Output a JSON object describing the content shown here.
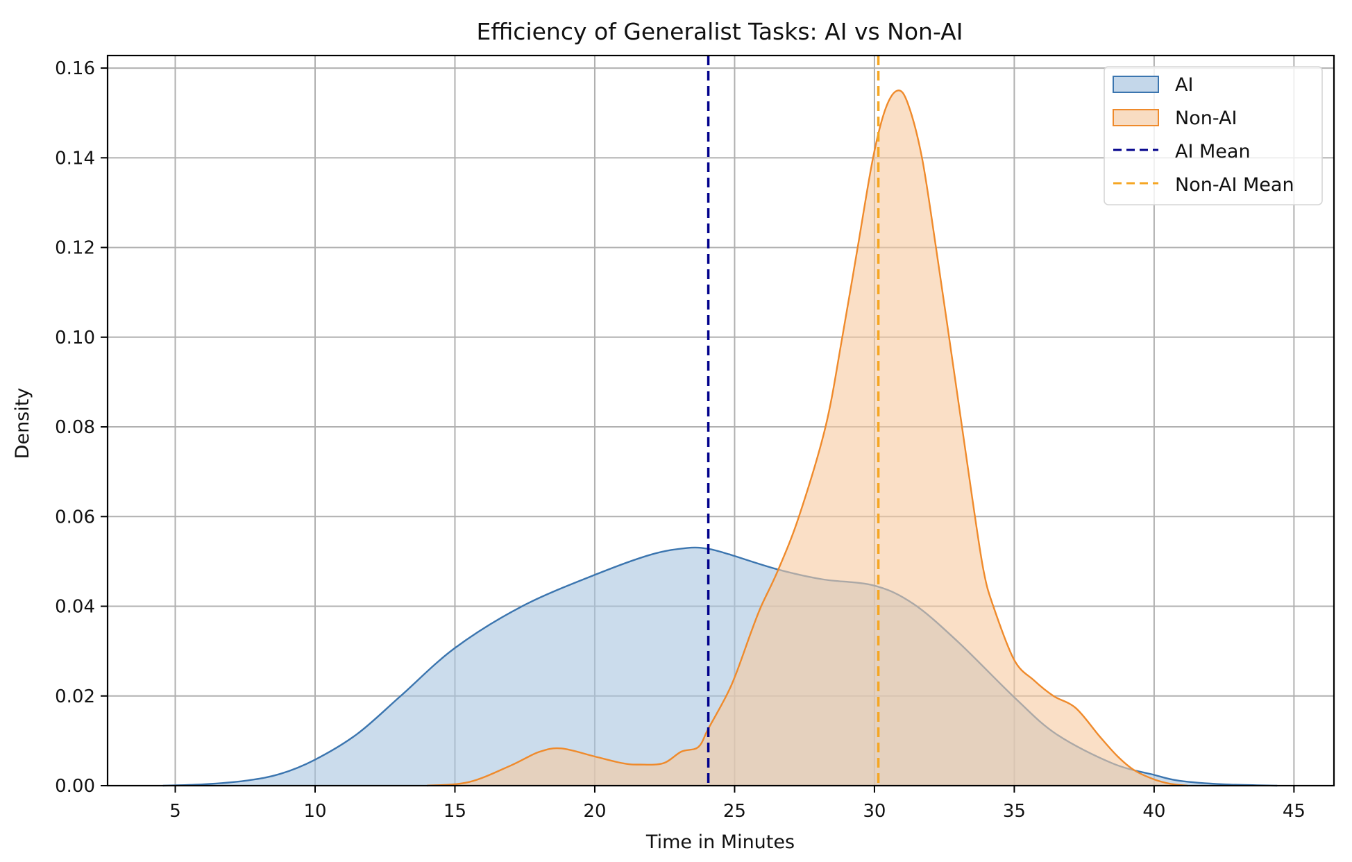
{
  "chart_data": {
    "type": "area",
    "subtype": "kde",
    "title": "Efficiency of Generalist Tasks: AI vs Non-AI",
    "xlabel": "Time in Minutes",
    "ylabel": "Density",
    "xlim": [
      2.58,
      46.43
    ],
    "ylim": [
      0,
      0.1628
    ],
    "xticks": [
      5,
      10,
      15,
      20,
      25,
      30,
      35,
      40,
      45
    ],
    "xtick_labels": [
      "5",
      "10",
      "15",
      "20",
      "25",
      "30",
      "35",
      "40",
      "45"
    ],
    "yticks": [
      0,
      0.02,
      0.04,
      0.06,
      0.08,
      0.1,
      0.12,
      0.14,
      0.16
    ],
    "ytick_labels": [
      "0.00",
      "0.02",
      "0.04",
      "0.06",
      "0.08",
      "0.10",
      "0.12",
      "0.14",
      "0.16"
    ],
    "grid": true,
    "legend_position": "upper right",
    "series": [
      {
        "name": "AI",
        "kind": "kde-fill",
        "line_color": "#3b75af",
        "fill_color": "#a9c5e0",
        "fill_opacity": 0.6,
        "x": [
          4.56,
          6.0,
          7.5,
          8.74,
          10.0,
          11.5,
          13.06,
          15.0,
          17.4,
          20.0,
          22.0,
          23.3,
          24.06,
          24.8,
          25.0,
          26.55,
          28.15,
          30.0,
          31.4,
          33.0,
          35.0,
          36.5,
          38.5,
          40.0,
          40.9,
          42.5,
          44.4
        ],
        "values": [
          0.0,
          0.0003,
          0.0011,
          0.0026,
          0.0058,
          0.0115,
          0.02,
          0.0307,
          0.04,
          0.047,
          0.0515,
          0.053,
          0.0528,
          0.0516,
          0.0512,
          0.0482,
          0.046,
          0.0446,
          0.0405,
          0.032,
          0.0197,
          0.0115,
          0.005,
          0.0024,
          0.0011,
          0.0003,
          0.0
        ]
      },
      {
        "name": "Non-AI",
        "kind": "kde-fill",
        "line_color": "#ef8a2b",
        "fill_color": "#f6c9a0",
        "fill_opacity": 0.6,
        "x": [
          14.0,
          15.5,
          17.0,
          18.0,
          18.8,
          20.0,
          21.0,
          21.6,
          22.45,
          23.1,
          23.7,
          24.06,
          24.7,
          25.06,
          25.6,
          25.95,
          26.55,
          27.3,
          28.25,
          28.85,
          29.4,
          29.95,
          30.4,
          30.83,
          31.2,
          31.7,
          32.2,
          32.9,
          33.5,
          33.9,
          34.25,
          35.0,
          35.7,
          36.4,
          37.2,
          38.05,
          38.7,
          39.3,
          40.0,
          40.6,
          41.2
        ],
        "values": [
          0.0,
          0.0008,
          0.0045,
          0.0075,
          0.0083,
          0.0065,
          0.005,
          0.0047,
          0.005,
          0.0076,
          0.0086,
          0.0127,
          0.02,
          0.0251,
          0.0344,
          0.04,
          0.048,
          0.06,
          0.08,
          0.1,
          0.12,
          0.14,
          0.151,
          0.155,
          0.152,
          0.14,
          0.12,
          0.09,
          0.064,
          0.048,
          0.04,
          0.028,
          0.0235,
          0.02,
          0.0173,
          0.011,
          0.0065,
          0.0034,
          0.0014,
          0.0004,
          0.0
        ]
      }
    ],
    "mean_lines": [
      {
        "name": "AI Mean",
        "x": 24.06,
        "color": "#00008b",
        "style": "dashed"
      },
      {
        "name": "Non-AI Mean",
        "x": 30.14,
        "color": "#f5a623",
        "style": "dashed"
      }
    ]
  },
  "legend": {
    "items": [
      {
        "label": "AI",
        "kind": "patch",
        "edge": "#3b75af",
        "fill": "#c4d7ea"
      },
      {
        "label": "Non-AI",
        "kind": "patch",
        "edge": "#ef8a2b",
        "fill": "#f8dcc2"
      },
      {
        "label": "AI Mean",
        "kind": "dash",
        "color": "#00008b"
      },
      {
        "label": "Non-AI Mean",
        "kind": "dash",
        "color": "#f5a623"
      }
    ]
  }
}
